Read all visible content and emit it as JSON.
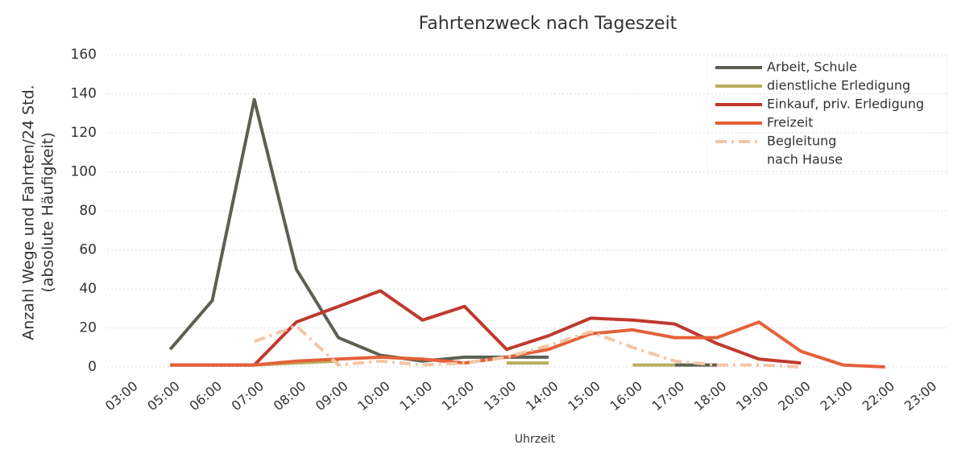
{
  "chart_data": {
    "type": "line",
    "title": "Fahrtenzweck nach Tageszeit",
    "x_label": "Uhrzeit",
    "y_label": [
      "Anzahl Wege und Fahrten/24 Std.",
      "(absolute Häufigkeit)"
    ],
    "categories": [
      "03:00",
      "05:00",
      "06:00",
      "07:00",
      "08:00",
      "09:00",
      "10:00",
      "11:00",
      "12:00",
      "13:00",
      "14:00",
      "15:00",
      "16:00",
      "17:00",
      "18:00",
      "19:00",
      "20:00",
      "21:00",
      "22:00",
      "23:00"
    ],
    "ylim": [
      0,
      160
    ],
    "yticks": [
      0,
      20,
      40,
      60,
      80,
      100,
      120,
      140,
      160
    ],
    "grid": true,
    "legend": "upper right",
    "series": [
      {
        "name": "Arbeit, Schule",
        "color": "#5b6152",
        "values": [
          null,
          9,
          34,
          137,
          50,
          15,
          6,
          3,
          5,
          5,
          5,
          null,
          null,
          1,
          1,
          null,
          null,
          null,
          null,
          null
        ]
      },
      {
        "name": "dienstliche Erledigung",
        "color": "#b8ae5c",
        "values": [
          null,
          1,
          1,
          1,
          2,
          3,
          null,
          null,
          null,
          2,
          2,
          null,
          1,
          1,
          null,
          null,
          null,
          null,
          null,
          null
        ]
      },
      {
        "name": "Einkauf, priv. Erledigung",
        "color": "#c0392e",
        "values": [
          null,
          1,
          1,
          1,
          23,
          31,
          39,
          24,
          31,
          9,
          16,
          25,
          24,
          22,
          12,
          4,
          2,
          null,
          null,
          null
        ]
      },
      {
        "name": "Freizeit",
        "color": "#e5603a",
        "values": [
          null,
          1,
          1,
          1,
          3,
          4,
          5,
          4,
          2,
          5,
          9,
          17,
          19,
          15,
          15,
          23,
          8,
          1,
          0,
          null
        ]
      },
      {
        "name": "Begleitung",
        "color": "#f3c6a6",
        "dash": true,
        "values": [
          null,
          null,
          null,
          13,
          21,
          1,
          3,
          1,
          2,
          5,
          11,
          18,
          10,
          3,
          1,
          1,
          0,
          null,
          null,
          null
        ]
      },
      {
        "name": "nach Hause",
        "color": "#ffffff",
        "values": [
          null,
          null,
          null,
          null,
          null,
          null,
          null,
          null,
          null,
          null,
          null,
          null,
          null,
          null,
          null,
          null,
          null,
          null,
          null,
          null
        ]
      }
    ]
  }
}
